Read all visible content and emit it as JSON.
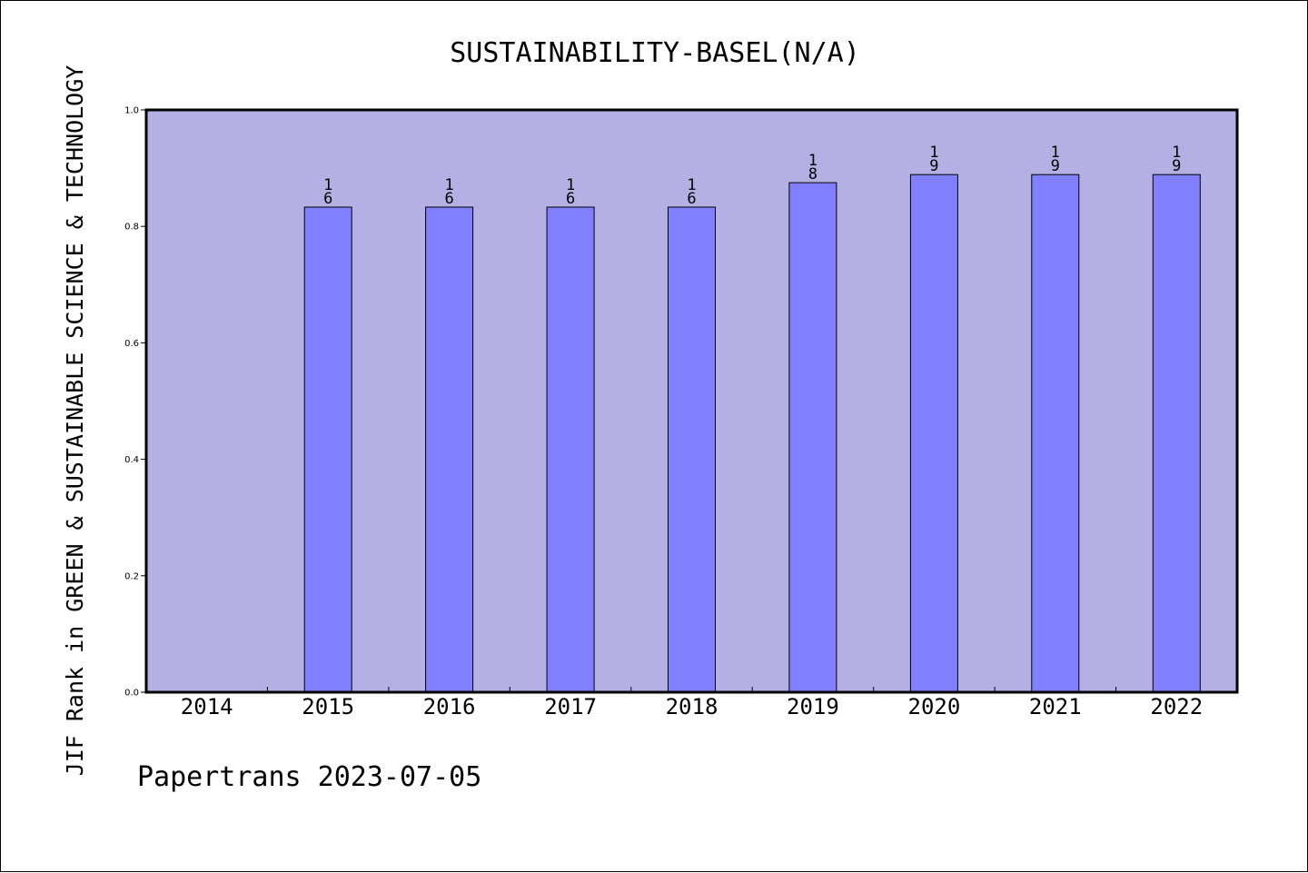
{
  "chart_data": {
    "type": "bar",
    "title": "SUSTAINABILITY-BASEL(N/A)",
    "ylabel": "JIF Rank in GREEN & SUSTAINABLE SCIENCE & TECHNOLOGY",
    "xlabel": "",
    "categories": [
      "2014",
      "2015",
      "2016",
      "2017",
      "2018",
      "2019",
      "2020",
      "2021",
      "2022"
    ],
    "values": [
      null,
      0.833,
      0.833,
      0.833,
      0.833,
      0.875,
      0.889,
      0.889,
      0.889
    ],
    "data_labels": [
      "",
      "16",
      "16",
      "16",
      "16",
      "18",
      "19",
      "19",
      "19"
    ],
    "ylim": [
      0,
      1.0
    ],
    "yticks": [
      "0.0",
      "0.2",
      "0.4",
      "0.6",
      "0.8",
      "1.0"
    ],
    "grid": false,
    "legend": "none",
    "colors": {
      "plot_background": "#b5b0e3",
      "bar_fill": "#8080ff",
      "bar_stroke": "#000000",
      "axis": "#000000"
    }
  },
  "footer": {
    "text": "Papertrans 2023-07-05"
  }
}
